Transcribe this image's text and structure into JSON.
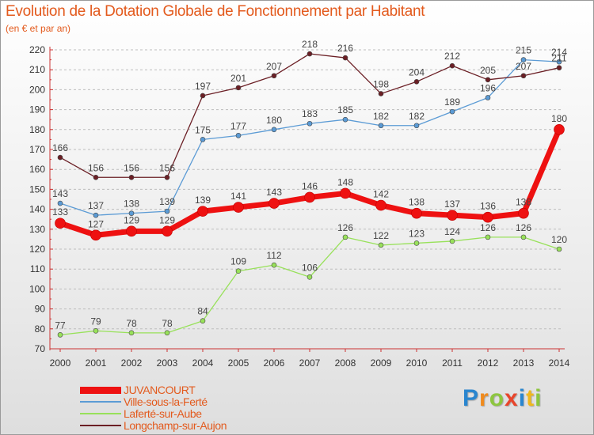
{
  "title": "Evolution de la Dotation Globale de Fonctionnement par Habitant",
  "subtitle": "(en € et par an)",
  "chart_data": {
    "type": "line",
    "x": [
      2000,
      2001,
      2002,
      2003,
      2004,
      2005,
      2006,
      2007,
      2008,
      2009,
      2010,
      2011,
      2012,
      2013,
      2014
    ],
    "ylim": [
      70,
      220
    ],
    "yticks": [
      70,
      80,
      90,
      100,
      110,
      120,
      130,
      140,
      150,
      160,
      170,
      180,
      190,
      200,
      210,
      220
    ],
    "grid": "dashed-horizontal",
    "series": [
      {
        "name": "JUVANCOURT",
        "color": "#ee1111",
        "emphasis": true,
        "values": [
          133,
          127,
          129,
          129,
          139,
          141,
          143,
          146,
          148,
          142,
          138,
          137,
          136,
          138,
          180
        ]
      },
      {
        "name": "Ville-sous-la-Ferté",
        "color": "#5b9bd5",
        "values": [
          143,
          137,
          138,
          139,
          175,
          177,
          180,
          183,
          185,
          182,
          182,
          189,
          196,
          215,
          214
        ]
      },
      {
        "name": "Laferté-sur-Aube",
        "color": "#98e15a",
        "values": [
          77,
          79,
          78,
          78,
          84,
          109,
          112,
          106,
          126,
          122,
          123,
          124,
          126,
          126,
          120
        ]
      },
      {
        "name": "Longchamp-sur-Aujon",
        "color": "#6b1f25",
        "values": [
          166,
          156,
          156,
          156,
          197,
          201,
          207,
          218,
          216,
          198,
          204,
          212,
          205,
          207,
          211
        ]
      }
    ]
  },
  "logo": {
    "letters": [
      "P",
      "r",
      "o",
      "x",
      "i",
      "t",
      "i"
    ],
    "colors": [
      "#2a86cf",
      "#f08a1c",
      "#8dc63f",
      "#e8452b",
      "#2a86cf",
      "#f0b81c",
      "#8dc63f"
    ]
  }
}
